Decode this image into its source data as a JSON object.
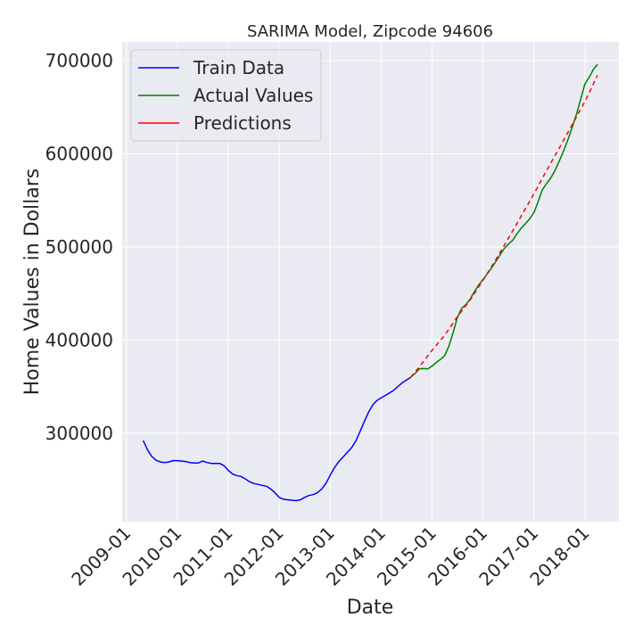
{
  "chart_data": {
    "type": "line",
    "title": "SARIMA Model, Zipcode 94606",
    "xlabel": "Date",
    "ylabel": "Home Values in Dollars",
    "x_ticks": [
      "2009-01",
      "2010-01",
      "2011-01",
      "2012-01",
      "2013-01",
      "2014-01",
      "2015-01",
      "2016-01",
      "2017-01",
      "2018-01"
    ],
    "y_ticks": [
      300000,
      400000,
      500000,
      600000,
      700000
    ],
    "y_tick_labels": [
      "300000",
      "400000",
      "500000",
      "600000",
      "700000"
    ],
    "xlim": [
      "2008-12-01",
      "2018-09-01"
    ],
    "ylim": [
      205000,
      720000
    ],
    "grid": true,
    "legend_position": "top-left",
    "background": "#eaeaf2",
    "series": [
      {
        "name": "Train Data",
        "color": "#0000ff",
        "style": "solid",
        "points": [
          [
            "2009-05-01",
            292000
          ],
          [
            "2009-06-01",
            282000
          ],
          [
            "2009-07-01",
            275000
          ],
          [
            "2009-08-01",
            271000
          ],
          [
            "2009-09-01",
            269000
          ],
          [
            "2009-10-01",
            268500
          ],
          [
            "2009-11-01",
            269000
          ],
          [
            "2009-12-01",
            270500
          ],
          [
            "2010-01-01",
            270500
          ],
          [
            "2010-02-01",
            270000
          ],
          [
            "2010-03-01",
            269500
          ],
          [
            "2010-04-01",
            268500
          ],
          [
            "2010-05-01",
            268000
          ],
          [
            "2010-06-01",
            268000
          ],
          [
            "2010-07-01",
            270000
          ],
          [
            "2010-08-01",
            268500
          ],
          [
            "2010-09-01",
            267500
          ],
          [
            "2010-10-01",
            267500
          ],
          [
            "2010-11-01",
            267500
          ],
          [
            "2010-12-01",
            265000
          ],
          [
            "2011-01-01",
            260000
          ],
          [
            "2011-02-01",
            256000
          ],
          [
            "2011-03-01",
            254500
          ],
          [
            "2011-04-01",
            253500
          ],
          [
            "2011-05-01",
            251000
          ],
          [
            "2011-06-01",
            248000
          ],
          [
            "2011-07-01",
            246000
          ],
          [
            "2011-08-01",
            245000
          ],
          [
            "2011-09-01",
            244000
          ],
          [
            "2011-10-01",
            243000
          ],
          [
            "2011-11-01",
            240000
          ],
          [
            "2011-12-01",
            236000
          ],
          [
            "2012-01-01",
            231000
          ],
          [
            "2012-02-01",
            229000
          ],
          [
            "2012-03-01",
            228500
          ],
          [
            "2012-04-01",
            228000
          ],
          [
            "2012-05-01",
            227500
          ],
          [
            "2012-06-01",
            228500
          ],
          [
            "2012-07-01",
            231000
          ],
          [
            "2012-08-01",
            233000
          ],
          [
            "2012-09-01",
            234000
          ],
          [
            "2012-10-01",
            236000
          ],
          [
            "2012-11-01",
            240000
          ],
          [
            "2012-12-01",
            246000
          ],
          [
            "2013-01-01",
            255000
          ],
          [
            "2013-02-01",
            263000
          ],
          [
            "2013-03-01",
            269000
          ],
          [
            "2013-04-01",
            274000
          ],
          [
            "2013-05-01",
            279000
          ],
          [
            "2013-06-01",
            284000
          ],
          [
            "2013-07-01",
            291000
          ],
          [
            "2013-08-01",
            301000
          ],
          [
            "2013-09-01",
            312000
          ],
          [
            "2013-10-01",
            322000
          ],
          [
            "2013-11-01",
            330000
          ],
          [
            "2013-12-01",
            335000
          ],
          [
            "2014-01-01",
            338000
          ],
          [
            "2014-02-01",
            340500
          ],
          [
            "2014-03-01",
            343000
          ],
          [
            "2014-04-01",
            346000
          ],
          [
            "2014-05-01",
            350000
          ],
          [
            "2014-06-01",
            354000
          ],
          [
            "2014-07-01",
            357000
          ],
          [
            "2014-08-01",
            360000
          ]
        ]
      },
      {
        "name": "Actual Values",
        "color": "#008000",
        "style": "solid",
        "points": [
          [
            "2014-08-01",
            360000
          ],
          [
            "2014-09-01",
            364000
          ],
          [
            "2014-10-01",
            369000
          ],
          [
            "2014-11-01",
            369500
          ],
          [
            "2014-12-01",
            369000
          ],
          [
            "2015-01-01",
            372000
          ],
          [
            "2015-02-01",
            376000
          ],
          [
            "2015-03-01",
            379000
          ],
          [
            "2015-04-01",
            383000
          ],
          [
            "2015-05-01",
            393000
          ],
          [
            "2015-06-01",
            408000
          ],
          [
            "2015-07-01",
            424000
          ],
          [
            "2015-08-01",
            434000
          ],
          [
            "2015-09-01",
            438000
          ],
          [
            "2015-10-01",
            444000
          ],
          [
            "2015-11-01",
            452000
          ],
          [
            "2015-12-01",
            459000
          ],
          [
            "2016-01-01",
            465000
          ],
          [
            "2016-02-01",
            471000
          ],
          [
            "2016-03-01",
            477000
          ],
          [
            "2016-04-01",
            484000
          ],
          [
            "2016-05-01",
            491000
          ],
          [
            "2016-06-01",
            498000
          ],
          [
            "2016-07-01",
            503000
          ],
          [
            "2016-08-01",
            507000
          ],
          [
            "2016-09-01",
            514000
          ],
          [
            "2016-10-01",
            520000
          ],
          [
            "2016-11-01",
            525000
          ],
          [
            "2016-12-01",
            530000
          ],
          [
            "2017-01-01",
            537000
          ],
          [
            "2017-02-01",
            549000
          ],
          [
            "2017-03-01",
            561000
          ],
          [
            "2017-04-01",
            568000
          ],
          [
            "2017-05-01",
            574000
          ],
          [
            "2017-06-01",
            582000
          ],
          [
            "2017-07-01",
            592000
          ],
          [
            "2017-08-01",
            603000
          ],
          [
            "2017-09-01",
            615000
          ],
          [
            "2017-10-01",
            628000
          ],
          [
            "2017-11-01",
            642000
          ],
          [
            "2017-12-01",
            658000
          ],
          [
            "2018-01-01",
            675000
          ],
          [
            "2018-02-01",
            682000
          ],
          [
            "2018-03-01",
            690000
          ],
          [
            "2018-04-01",
            696000
          ]
        ]
      },
      {
        "name": "Predictions",
        "color": "#ff0000",
        "style": "dashed",
        "points": [
          [
            "2014-08-01",
            360000
          ],
          [
            "2014-10-01",
            371000
          ],
          [
            "2015-01-01",
            389000
          ],
          [
            "2015-04-01",
            405000
          ],
          [
            "2015-07-01",
            425000
          ],
          [
            "2015-10-01",
            443000
          ],
          [
            "2016-01-01",
            464000
          ],
          [
            "2016-04-01",
            486000
          ],
          [
            "2016-07-01",
            509000
          ],
          [
            "2016-10-01",
            533000
          ],
          [
            "2017-01-01",
            557000
          ],
          [
            "2017-04-01",
            582000
          ],
          [
            "2017-07-01",
            606000
          ],
          [
            "2017-10-01",
            631000
          ],
          [
            "2018-01-01",
            656000
          ],
          [
            "2018-04-01",
            684000
          ]
        ]
      }
    ]
  }
}
